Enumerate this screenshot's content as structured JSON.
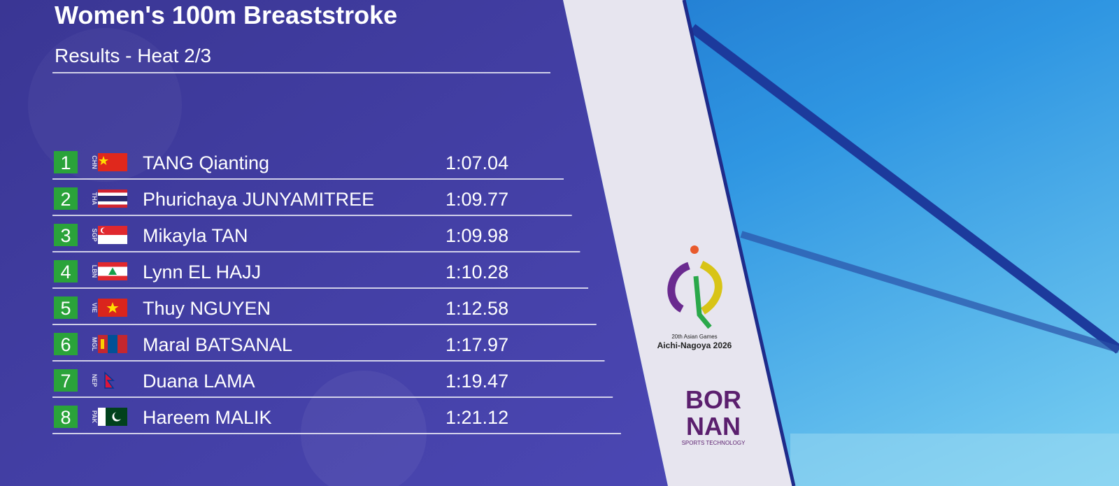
{
  "header": {
    "title": "Women's 100m Breaststroke",
    "subtitle": "Results - Heat 2/3"
  },
  "results": [
    {
      "rank": "1",
      "code": "CHN",
      "name": "TANG Qianting",
      "time": "1:07.04"
    },
    {
      "rank": "2",
      "code": "THA",
      "name": "Phurichaya JUNYAMITREE",
      "time": "1:09.77"
    },
    {
      "rank": "3",
      "code": "SGP",
      "name": "Mikayla TAN",
      "time": "1:09.98"
    },
    {
      "rank": "4",
      "code": "LBN",
      "name": "Lynn EL HAJJ",
      "time": "1:10.28"
    },
    {
      "rank": "5",
      "code": "VIE",
      "name": "Thuy NGUYEN",
      "time": "1:12.58"
    },
    {
      "rank": "6",
      "code": "MGL",
      "name": "Maral BATSANAL",
      "time": "1:17.97"
    },
    {
      "rank": "7",
      "code": "NEP",
      "name": "Duana LAMA",
      "time": "1:19.47"
    },
    {
      "rank": "8",
      "code": "PAK",
      "name": "Hareem MALIK",
      "time": "1:21.12"
    }
  ],
  "event_logo": {
    "line1": "20th Asian Games",
    "line2": "Aichi-Nagoya 2026"
  },
  "sponsor": {
    "line1": "BOR",
    "line2": "NAN",
    "tagline": "SPORTS TECHNOLOGY"
  }
}
